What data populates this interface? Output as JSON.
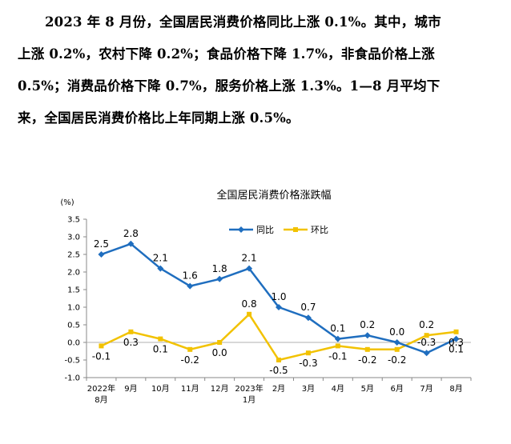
{
  "paragraph": {
    "lines": [
      "2023 年 8 月份，全国居民消费价格同比上涨 0.1%。其中，城市",
      "上涨 0.2%，农村下降 0.2%；食品价格下降 1.7%，非食品价格上涨",
      "0.5%；消费品价格下降 0.7%，服务价格上涨 1.3%。1—8 月平均下",
      "来，全国居民消费价格比上年同期上涨 0.5%。"
    ]
  },
  "chart_data": {
    "type": "line",
    "title": "全国居民消费价格涨跌幅",
    "ylabel": "(%)",
    "ylim": [
      -1.0,
      3.5
    ],
    "ytick_step": 0.5,
    "yticks": [
      "-1.0",
      "-0.5",
      "0.0",
      "0.5",
      "1.0",
      "1.5",
      "2.0",
      "2.5",
      "3.0",
      "3.5"
    ],
    "categories": [
      [
        "2022年",
        "8月"
      ],
      [
        "9月"
      ],
      [
        "10月"
      ],
      [
        "11月"
      ],
      [
        "12月"
      ],
      [
        "2023年",
        "1月"
      ],
      [
        "2月"
      ],
      [
        "3月"
      ],
      [
        "4月"
      ],
      [
        "5月"
      ],
      [
        "6月"
      ],
      [
        "7月"
      ],
      [
        "8月"
      ]
    ],
    "legend_position": "top",
    "series": [
      {
        "name": "同比",
        "color": "#1f6ebf",
        "marker": "diamond",
        "values": [
          2.5,
          2.8,
          2.1,
          1.6,
          1.8,
          2.1,
          1.0,
          0.7,
          0.1,
          0.2,
          0.0,
          -0.3,
          0.1
        ],
        "labels": [
          "2.5",
          "2.8",
          "2.1",
          "1.6",
          "1.8",
          "2.1",
          "1.0",
          "0.7",
          "0.1",
          "0.2",
          "0.0",
          "-0.3",
          "0.1"
        ]
      },
      {
        "name": "环比",
        "color": "#f2c200",
        "marker": "square",
        "values": [
          -0.1,
          0.3,
          0.1,
          -0.2,
          0.0,
          0.8,
          -0.5,
          -0.3,
          -0.1,
          -0.2,
          -0.2,
          0.2,
          0.3
        ],
        "labels": [
          "-0.1",
          "0.3",
          "0.1",
          "-0.2",
          "0.0",
          "0.8",
          "-0.5",
          "-0.3",
          "-0.1",
          "-0.2",
          "-0.2",
          "0.2",
          "0.3"
        ]
      }
    ]
  }
}
